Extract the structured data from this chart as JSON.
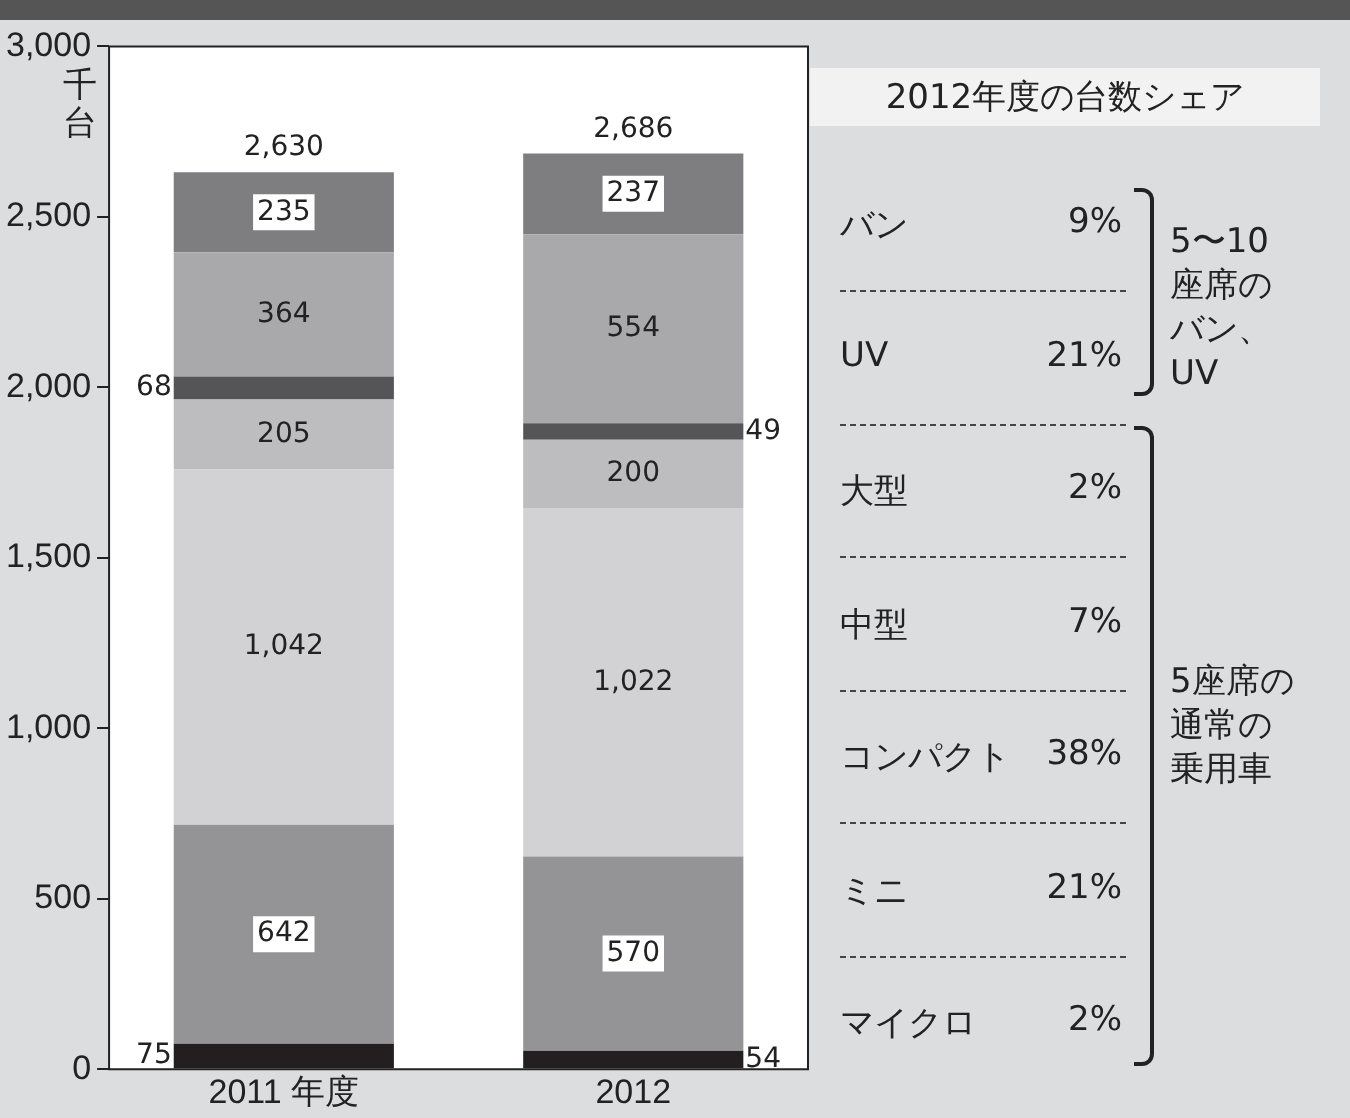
{
  "chart_data": {
    "type": "bar",
    "stacked": true,
    "ylabel": "千台",
    "categories": [
      "2011 年度",
      "2012"
    ],
    "series": [
      {
        "name": "マイクロ",
        "color": "#231f20",
        "values": [
          75,
          54
        ]
      },
      {
        "name": "ミニ",
        "color": "#949496",
        "values": [
          642,
          570
        ]
      },
      {
        "name": "コンパクト",
        "color": "#d2d2d4",
        "values": [
          1042,
          1022
        ],
        "value_labels": [
          "1,042",
          "1,022"
        ]
      },
      {
        "name": "中型",
        "color": "#bdbdbf",
        "values": [
          205,
          200
        ]
      },
      {
        "name": "大型",
        "color": "#555557",
        "values": [
          68,
          49
        ]
      },
      {
        "name": "UV",
        "color": "#a9a9ab",
        "values": [
          364,
          554
        ]
      },
      {
        "name": "バン",
        "color": "#7e7e80",
        "values": [
          235,
          237
        ]
      }
    ],
    "ylim": [
      0,
      3000
    ],
    "yticks": [
      0,
      500,
      {
        "value": 1000,
        "label": "1,000"
      },
      {
        "value": 1500,
        "label": "1,500"
      },
      {
        "value": 2000,
        "label": "2,000"
      },
      {
        "value": 2500,
        "label": "2,500"
      },
      {
        "value": 3000,
        "label": "3,000"
      }
    ],
    "data_labels": true,
    "totals": [
      "2,630",
      "2,686"
    ],
    "grid": false,
    "legend": false,
    "annotations": [
      "2012年度の台数シェア",
      "9%",
      "21%",
      "2%",
      "7%",
      "38%",
      "21%",
      "2%",
      "5〜10座席のバン、UV",
      "5座席の通常の乗用車"
    ]
  }
}
